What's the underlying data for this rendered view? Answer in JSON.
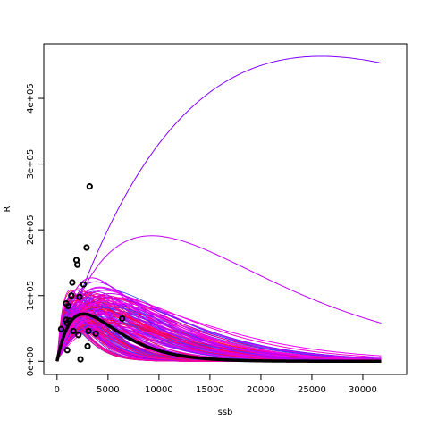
{
  "chart_data": {
    "type": "scatter",
    "xlabel": "ssb",
    "ylabel": "R",
    "xlim": [
      -1300,
      34300
    ],
    "ylim": [
      -20000,
      483000
    ],
    "xticks": [
      0,
      5000,
      10000,
      15000,
      20000,
      25000,
      30000
    ],
    "xtick_labels": [
      "0",
      "5000",
      "10000",
      "15000",
      "20000",
      "25000",
      "30000"
    ],
    "yticks": [
      0,
      100000,
      200000,
      300000,
      400000
    ],
    "ytick_labels": [
      "0e+00",
      "1e+05",
      "2e+05",
      "3e+05",
      "4e+05"
    ],
    "grid": false,
    "legend": "none",
    "curve_model": "Ricker R = a * ssb * exp(-b * ssb)",
    "curve_x_range": [
      0,
      31800
    ],
    "curve_colors": [
      "#ff0033",
      "#ff0066",
      "#ff0099",
      "#ff00cc",
      "#e000ff",
      "#b000ff",
      "#8000ff",
      "#5533ff",
      "#3344ff"
    ],
    "fit_curve": {
      "name": "",
      "color": "#000000",
      "peak_ssb": 2600,
      "peak_R": 72000
    },
    "replicate_curves": [
      {
        "peak_ssb": 25900,
        "peak_R": 464000,
        "color": "#8000ff"
      },
      {
        "peak_ssb": 9300,
        "peak_R": 191000,
        "color": "#c000ff"
      },
      {
        "peak_ssb": 3400,
        "peak_R": 127000,
        "color": "#cc00ff"
      },
      {
        "peak_ssb": 3800,
        "peak_R": 121000,
        "color": "#aa00ff"
      },
      {
        "peak_ssb": 4200,
        "peak_R": 113000,
        "color": "#dd00ff"
      },
      {
        "peak_ssb": 4600,
        "peak_R": 108000,
        "color": "#ee00ee"
      },
      {
        "peak_ssb": 5200,
        "peak_R": 103000,
        "color": "#cc00ff"
      },
      {
        "peak_ssb": 5800,
        "peak_R": 97000,
        "color": "#ff00cc"
      },
      {
        "peak_ssb": 4900,
        "peak_R": 92000,
        "color": "#ff00dd"
      },
      {
        "peak_ssb": 6400,
        "peak_R": 88000,
        "color": "#ee00ff"
      }
    ],
    "points": [
      {
        "x": 3200,
        "y": 266000
      },
      {
        "x": 2900,
        "y": 173000
      },
      {
        "x": 1900,
        "y": 154000
      },
      {
        "x": 2000,
        "y": 147000
      },
      {
        "x": 1500,
        "y": 120000
      },
      {
        "x": 2600,
        "y": 117000
      },
      {
        "x": 1400,
        "y": 100000
      },
      {
        "x": 2200,
        "y": 98000
      },
      {
        "x": 900,
        "y": 88000
      },
      {
        "x": 1100,
        "y": 84000
      },
      {
        "x": 6400,
        "y": 65000
      },
      {
        "x": 900,
        "y": 63000
      },
      {
        "x": 1200,
        "y": 62000
      },
      {
        "x": 1000,
        "y": 58000
      },
      {
        "x": 400,
        "y": 49000
      },
      {
        "x": 3100,
        "y": 46000
      },
      {
        "x": 1600,
        "y": 46000
      },
      {
        "x": 3800,
        "y": 42000
      },
      {
        "x": 2100,
        "y": 40000
      },
      {
        "x": 3000,
        "y": 23000
      },
      {
        "x": 1000,
        "y": 17000
      },
      {
        "x": 2300,
        "y": 3000
      }
    ]
  }
}
